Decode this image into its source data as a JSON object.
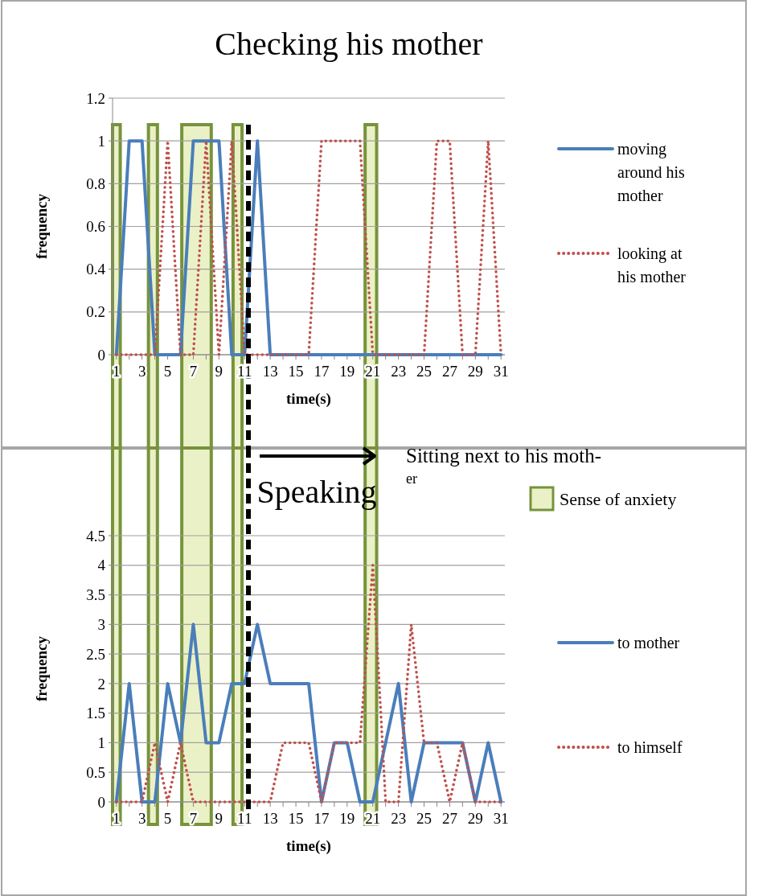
{
  "chart_data": [
    {
      "type": "line",
      "title": "Checking his  mother",
      "xlabel": "time(s)",
      "ylabel": "frequency",
      "x": [
        1,
        2,
        3,
        4,
        5,
        6,
        7,
        8,
        9,
        10,
        11,
        12,
        13,
        14,
        15,
        16,
        17,
        18,
        19,
        20,
        21,
        22,
        23,
        24,
        25,
        26,
        27,
        28,
        29,
        30,
        31
      ],
      "series": [
        {
          "name": "moving around his mother",
          "color": "#4a7ebb",
          "line_style": "solid",
          "values": [
            0,
            1,
            1,
            0,
            0,
            0,
            1,
            1,
            1,
            0,
            0,
            1,
            0,
            0,
            0,
            0,
            0,
            0,
            0,
            0,
            0,
            0,
            0,
            0,
            0,
            0,
            0,
            0,
            0,
            0,
            0
          ]
        },
        {
          "name": "looking at his mother",
          "color": "#c0504d",
          "line_style": "dotted",
          "values": [
            0,
            0,
            0,
            0,
            1,
            0,
            0,
            1,
            0,
            1,
            0,
            0,
            0,
            0,
            0,
            0,
            1,
            1,
            1,
            1,
            0,
            0,
            0,
            0,
            0,
            1,
            1,
            0,
            0,
            1,
            0
          ]
        }
      ],
      "xlim": [
        0.7,
        31.3
      ],
      "xticks": [
        1,
        {
          "value": 2,
          "label": null
        },
        3,
        {
          "value": 4,
          "label": null
        },
        5,
        {
          "value": 6,
          "label": null
        },
        7,
        {
          "value": 8,
          "label": null
        },
        9,
        {
          "value": 10,
          "label": null
        },
        11,
        {
          "value": 12,
          "label": null
        },
        13,
        {
          "value": 14,
          "label": null
        },
        15,
        {
          "value": 16,
          "label": null
        },
        17,
        {
          "value": 18,
          "label": null
        },
        19,
        {
          "value": 20,
          "label": null
        },
        21,
        {
          "value": 22,
          "label": null
        },
        23,
        {
          "value": 24,
          "label": null
        },
        25,
        {
          "value": 26,
          "label": null
        },
        27,
        {
          "value": 28,
          "label": null
        },
        29,
        {
          "value": 30,
          "label": null
        },
        31
      ],
      "ylim": [
        0,
        1.2
      ],
      "yticks": [
        0,
        0.2,
        0.4,
        0.6,
        0.8,
        1,
        1.2
      ],
      "grid": "y",
      "legend": "right",
      "bands": [
        {
          "axis": "x",
          "from": 0.7,
          "to": 1.3,
          "color": "#ebf1c6",
          "label": "Sense of anxiety"
        },
        {
          "axis": "x",
          "from": 3.5,
          "to": 4.2,
          "color": "#ebf1c6"
        },
        {
          "axis": "x",
          "from": 6.1,
          "to": 8.4,
          "color": "#ebf1c6"
        },
        {
          "axis": "x",
          "from": 10.1,
          "to": 10.8,
          "color": "#ebf1c6"
        },
        {
          "axis": "x",
          "from": 20.4,
          "to": 21.3,
          "color": "#ebf1c6"
        }
      ],
      "ref_lines": [
        {
          "axis": "x",
          "value": 11.3,
          "color": "#000000",
          "line_style": "dashed"
        }
      ]
    },
    {
      "type": "line",
      "title": "Speaking",
      "xlabel": "time(s)",
      "ylabel": "frequency",
      "x": [
        1,
        2,
        3,
        4,
        5,
        6,
        7,
        8,
        9,
        10,
        11,
        12,
        13,
        14,
        15,
        16,
        17,
        18,
        19,
        20,
        21,
        22,
        23,
        24,
        25,
        26,
        27,
        28,
        29,
        30,
        31
      ],
      "series": [
        {
          "name": "to mother",
          "color": "#4a7ebb",
          "line_style": "solid",
          "values": [
            0,
            2,
            0,
            0,
            2,
            1,
            3,
            1,
            1,
            2,
            2,
            3,
            2,
            2,
            2,
            2,
            0,
            1,
            1,
            0,
            0,
            1,
            2,
            0,
            1,
            1,
            1,
            1,
            0,
            1,
            0
          ]
        },
        {
          "name": "to himself",
          "color": "#c0504d",
          "line_style": "dotted",
          "values": [
            0,
            0,
            0,
            1,
            0,
            1,
            0,
            0,
            0,
            0,
            0,
            0,
            0,
            1,
            1,
            1,
            0,
            1,
            1,
            1,
            4,
            0,
            0,
            3,
            1,
            1,
            0,
            1,
            0,
            0,
            0
          ]
        }
      ],
      "xlim": [
        0.7,
        31.3
      ],
      "xticks": [
        1,
        {
          "value": 2,
          "label": null
        },
        3,
        {
          "value": 4,
          "label": null
        },
        5,
        {
          "value": 6,
          "label": null
        },
        7,
        {
          "value": 8,
          "label": null
        },
        9,
        {
          "value": 10,
          "label": null
        },
        11,
        {
          "value": 12,
          "label": null
        },
        13,
        {
          "value": 14,
          "label": null
        },
        15,
        {
          "value": 16,
          "label": null
        },
        17,
        {
          "value": 18,
          "label": null
        },
        19,
        {
          "value": 20,
          "label": null
        },
        21,
        {
          "value": 22,
          "label": null
        },
        23,
        {
          "value": 24,
          "label": null
        },
        25,
        {
          "value": 26,
          "label": null
        },
        27,
        {
          "value": 28,
          "label": null
        },
        29,
        {
          "value": 30,
          "label": null
        },
        31
      ],
      "ylim": [
        0,
        4.5
      ],
      "yticks": [
        0,
        0.5,
        1,
        1.5,
        2,
        2.5,
        3,
        3.5,
        4,
        4.5
      ],
      "grid": "y",
      "legend": "right",
      "bands": [
        {
          "axis": "x",
          "from": 0.7,
          "to": 1.3,
          "color": "#ebf1c6"
        },
        {
          "axis": "x",
          "from": 3.5,
          "to": 4.2,
          "color": "#ebf1c6"
        },
        {
          "axis": "x",
          "from": 6.1,
          "to": 8.4,
          "color": "#ebf1c6"
        },
        {
          "axis": "x",
          "from": 10.1,
          "to": 10.8,
          "color": "#ebf1c6"
        },
        {
          "axis": "x",
          "from": 20.4,
          "to": 21.3,
          "color": "#ebf1c6"
        }
      ],
      "ref_lines": [
        {
          "axis": "x",
          "value": 11.3,
          "color": "#000000",
          "line_style": "dashed"
        }
      ],
      "annotations": [
        "Sitting next to his moth-er"
      ]
    }
  ]
}
